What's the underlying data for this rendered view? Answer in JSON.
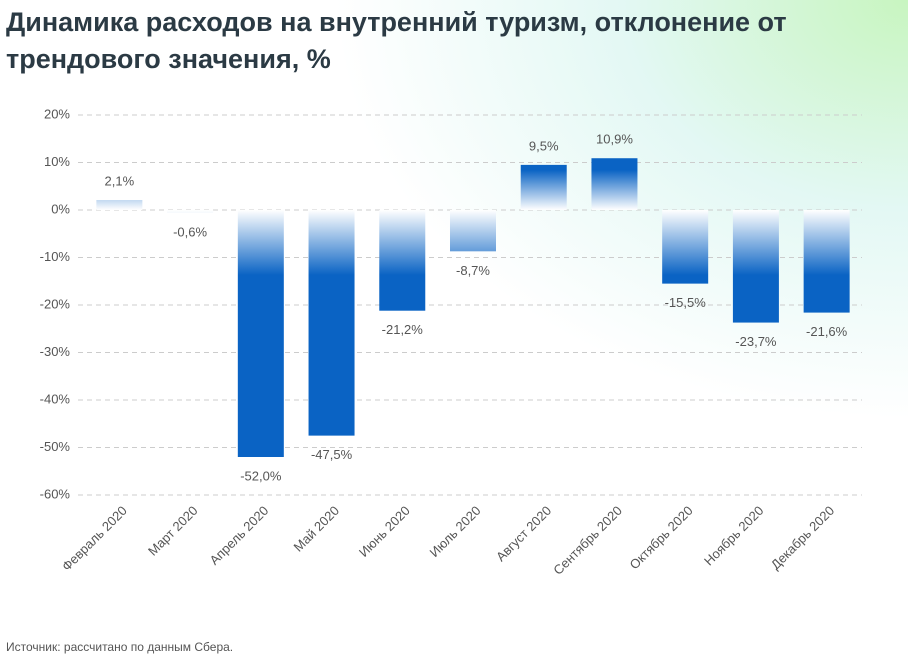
{
  "chart_data": {
    "type": "bar",
    "title": "Динамика расходов на внутренний туризм, отклонение от трендового значения, %",
    "source": "Источник: рассчитано по данным Сбера.",
    "categories": [
      "Февраль 2020",
      "Март 2020",
      "Апрель 2020",
      "Май 2020",
      "Июнь 2020",
      "Июль 2020",
      "Август 2020",
      "Сентябрь 2020",
      "Октябрь 2020",
      "Ноябрь 2020",
      "Декабрь 2020"
    ],
    "values": [
      2.1,
      -0.6,
      -52.0,
      -47.5,
      -21.2,
      -8.7,
      9.5,
      10.9,
      -15.5,
      -23.7,
      -21.6
    ],
    "value_labels": [
      "2,1%",
      "-0,6%",
      "-52,0%",
      "-47,5%",
      "-21,2%",
      "-8,7%",
      "9,5%",
      "10,9%",
      "-15,5%",
      "-23,7%",
      "-21,6%"
    ],
    "color": "#0a63c4",
    "ylim": [
      -60,
      20
    ],
    "yticks": [
      {
        "value": -60,
        "label": "-60%"
      },
      {
        "value": -50,
        "label": "-50%"
      },
      {
        "value": -40,
        "label": "-40%"
      },
      {
        "value": -30,
        "label": "-30%"
      },
      {
        "value": -20,
        "label": "-20%"
      },
      {
        "value": -10,
        "label": "-10%"
      },
      {
        "value": 0,
        "label": "0%"
      },
      {
        "value": 10,
        "label": "10%"
      },
      {
        "value": 20,
        "label": "20%"
      }
    ],
    "grid": true
  }
}
